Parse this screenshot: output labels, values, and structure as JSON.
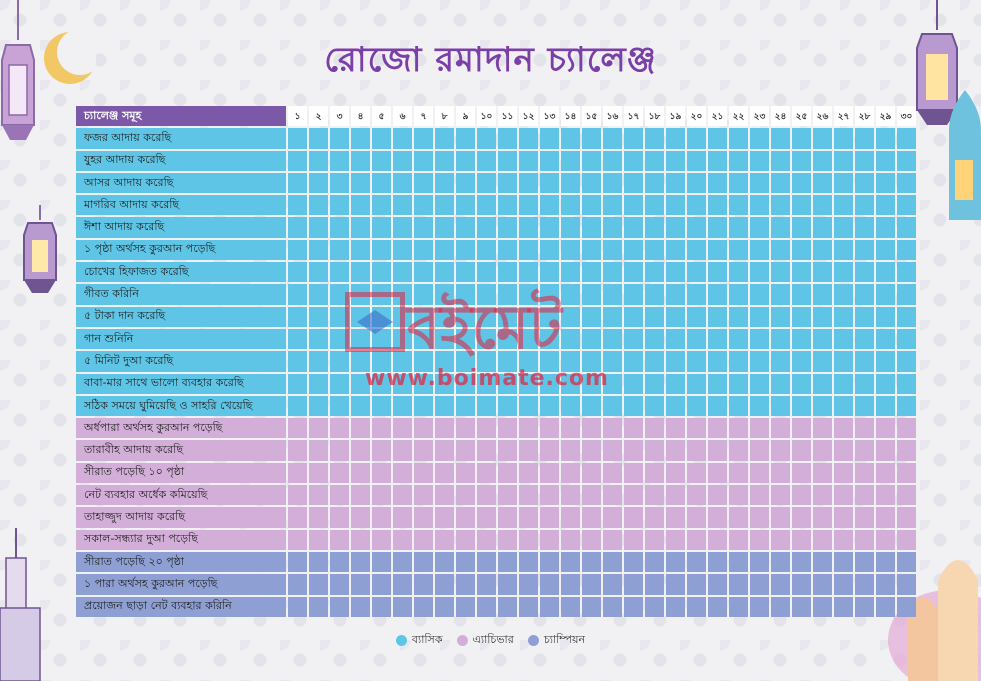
{
  "title": "রোজো রমাদান চ্যালেঞ্জ",
  "header": {
    "label": "চ্যালেঞ্জ সমূহ",
    "days": [
      "১",
      "২",
      "৩",
      "৪",
      "৫",
      "৬",
      "৭",
      "৮",
      "৯",
      "১০",
      "১১",
      "১২",
      "১৩",
      "১৪",
      "১৫",
      "১৬",
      "১৭",
      "১৮",
      "১৯",
      "২০",
      "২১",
      "২২",
      "২৩",
      "২৪",
      "২৫",
      "২৬",
      "২৭",
      "২৮",
      "২৯",
      "৩০"
    ]
  },
  "rows": [
    {
      "label": "ফজর আদায় করেছি",
      "level": "basic"
    },
    {
      "label": "যুহর আদায় করেছি",
      "level": "basic"
    },
    {
      "label": "আসর আদায় করেছি",
      "level": "basic"
    },
    {
      "label": "মাগরিব আদায় করেছি",
      "level": "basic"
    },
    {
      "label": "ঈশা আদায় করেছি",
      "level": "basic"
    },
    {
      "label": "১ পৃষ্ঠা অর্থসহ কুরআন পড়েছি",
      "level": "basic"
    },
    {
      "label": "চোখের হিফাজত করেছি",
      "level": "basic"
    },
    {
      "label": "গীবত করিনি",
      "level": "basic"
    },
    {
      "label": "৫ টাকা দান করেছি",
      "level": "basic"
    },
    {
      "label": "গান শুনিনি",
      "level": "basic"
    },
    {
      "label": "৫ মিনিট দুআ করেছি",
      "level": "basic"
    },
    {
      "label": "বাবা-মার সাথে ভালো ব্যবহার করেছি",
      "level": "basic"
    },
    {
      "label": "সঠিক সময়ে ঘুমিয়েছি ও সাহরি খেয়েছি",
      "level": "basic"
    },
    {
      "label": "অর্ধপারা অর্থসহ কুরআন পড়েছি",
      "level": "achiever"
    },
    {
      "label": "তারাবীহ আদায় করেছি",
      "level": "achiever"
    },
    {
      "label": "সীরাত পড়েছি ১০ পৃষ্ঠা",
      "level": "achiever"
    },
    {
      "label": "নেট ব্যবহার অর্ধেক কমিয়েছি",
      "level": "achiever"
    },
    {
      "label": "তাহাজ্জুদ আদায় করেছি",
      "level": "achiever"
    },
    {
      "label": "সকাল-সন্ধ্যার দুআ পড়েছি",
      "level": "achiever"
    },
    {
      "label": "সীরাত পড়েছি ২০ পৃষ্ঠা",
      "level": "champion"
    },
    {
      "label": "১ পারা অর্থসহ কুরআন পড়েছি",
      "level": "champion"
    },
    {
      "label": "প্রয়োজন ছাড়া নেট ব্যবহার করিনি",
      "level": "champion"
    }
  ],
  "legend": [
    {
      "label": "ব্যাসিক",
      "color": "#5ec5e6"
    },
    {
      "label": "এ্যাচিভার",
      "color": "#d3aed8"
    },
    {
      "label": "চ্যাম্পিয়ন",
      "color": "#8e9fd4"
    }
  ],
  "watermark": {
    "brand": "বইমেট",
    "url": "www.boimate.com"
  }
}
